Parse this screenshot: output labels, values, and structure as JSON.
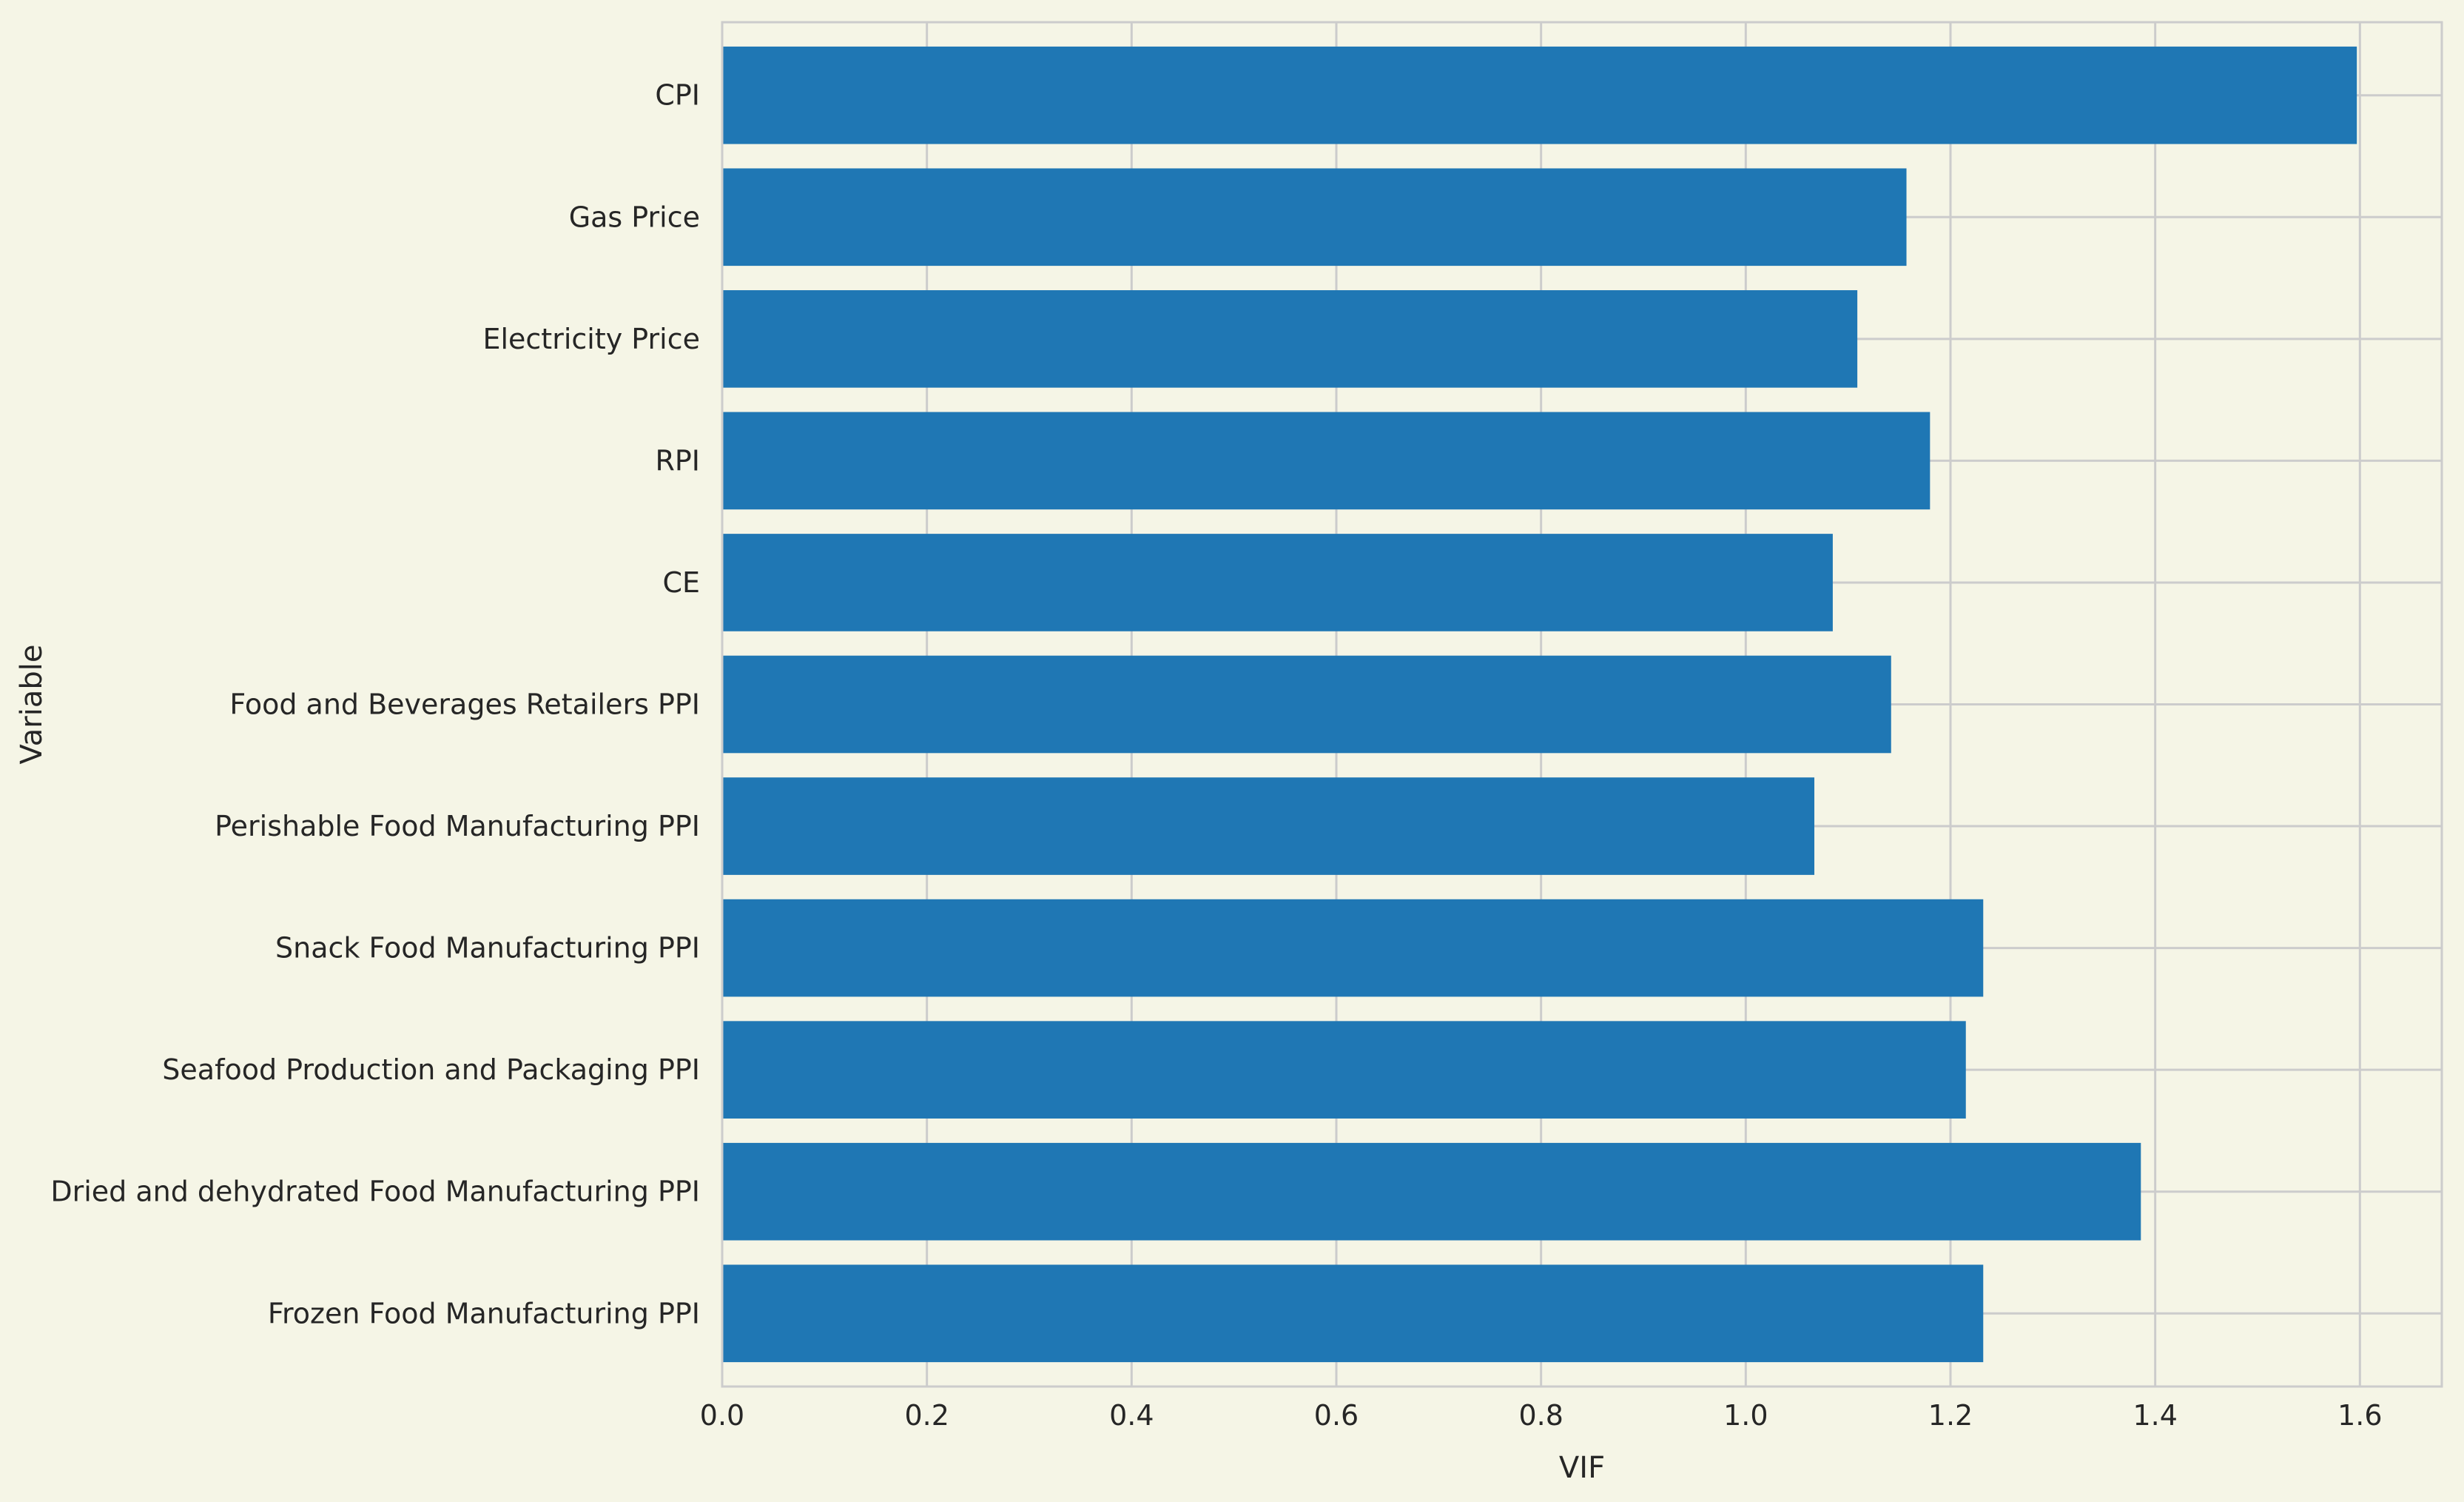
{
  "chart_data": {
    "type": "bar",
    "orientation": "horizontal",
    "categories": [
      "CPI",
      "Gas Price",
      "Electricity Price",
      "RPI",
      "CE",
      "Food and Beverages Retailers PPI",
      "Perishable Food Manufacturing PPI",
      "Snack Food Manufacturing PPI",
      "Seafood Production and Packaging PPI",
      "Dried and dehydrated Food Manufacturing PPI",
      "Frozen Food Manufacturing PPI"
    ],
    "values": [
      1.597,
      1.157,
      1.109,
      1.18,
      1.085,
      1.142,
      1.067,
      1.232,
      1.215,
      1.386,
      1.232
    ],
    "xlabel": "VIF",
    "ylabel": "Variable",
    "xlim": [
      0,
      1.68
    ],
    "xticks": [
      "0.0",
      "0.2",
      "0.4",
      "0.6",
      "0.8",
      "1.0",
      "1.2",
      "1.4",
      "1.6"
    ],
    "grid": true,
    "colors": {
      "bar": "#1f77b4",
      "background": "#f5f5e6",
      "grid": "#cccccc",
      "text": "#262626"
    }
  }
}
